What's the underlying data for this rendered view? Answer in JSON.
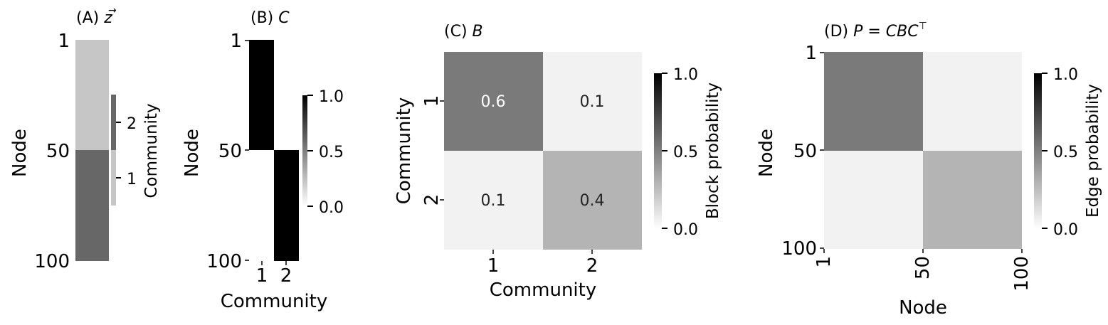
{
  "chart_data": [
    {
      "type": "heatmap",
      "panel": "A",
      "title": "(A) ",
      "title_math": "z",
      "ylabel": "Node",
      "yticks": [
        "1",
        "50",
        "100"
      ],
      "rows": [
        {
          "range": [
            1,
            50
          ],
          "community": 1
        },
        {
          "range": [
            51,
            100
          ],
          "community": 2
        }
      ],
      "colorbar": {
        "label": "Community",
        "ticks": [
          "1",
          "2"
        ]
      },
      "colors": {
        "1": "#c6c6c6",
        "2": "#676767"
      }
    },
    {
      "type": "heatmap",
      "panel": "B",
      "title": "(B) ",
      "title_math": "C",
      "xlabel": "Community",
      "ylabel": "Node",
      "xticks": [
        "1",
        "2"
      ],
      "yticks": [
        "1",
        "50",
        "100"
      ],
      "matrix_blocks": [
        {
          "rows": [
            1,
            50
          ],
          "col": 1,
          "value": 1
        },
        {
          "rows": [
            1,
            50
          ],
          "col": 2,
          "value": 0
        },
        {
          "rows": [
            51,
            100
          ],
          "col": 1,
          "value": 0
        },
        {
          "rows": [
            51,
            100
          ],
          "col": 2,
          "value": 1
        }
      ],
      "colorbar": {
        "ticks": [
          "0.0",
          "0.5",
          "1.0"
        ],
        "range": [
          0,
          1
        ]
      }
    },
    {
      "type": "heatmap",
      "panel": "C",
      "title": "(C) ",
      "title_math": "B",
      "xlabel": "Community",
      "ylabel": "Community",
      "xticks": [
        "1",
        "2"
      ],
      "yticks": [
        "1",
        "2"
      ],
      "values": [
        [
          0.6,
          0.1
        ],
        [
          0.1,
          0.4
        ]
      ],
      "cell_labels": [
        [
          "0.6",
          "0.1"
        ],
        [
          "0.1",
          "0.4"
        ]
      ],
      "colorbar": {
        "label": "Block probability",
        "ticks": [
          "0.0",
          "0.5",
          "1.0"
        ],
        "range": [
          0,
          1
        ]
      }
    },
    {
      "type": "heatmap",
      "panel": "D",
      "title": "(D) ",
      "title_math": "P = CBC",
      "title_sup": "⊤",
      "xlabel": "Node",
      "ylabel": "Node",
      "xticks": [
        "1",
        "50",
        "100"
      ],
      "yticks": [
        "1",
        "50",
        "100"
      ],
      "values": [
        [
          0.6,
          0.1
        ],
        [
          0.1,
          0.4
        ]
      ],
      "colorbar": {
        "label": "Edge probability",
        "ticks": [
          "0.0",
          "0.5",
          "1.0"
        ],
        "range": [
          0,
          1
        ]
      }
    }
  ]
}
